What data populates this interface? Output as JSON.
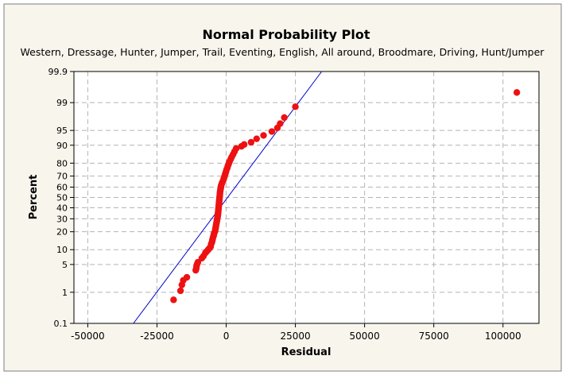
{
  "chart_data": {
    "type": "scatter",
    "title": "Normal Probability Plot",
    "subtitle": "Western, Dressage, Hunter, Jumper, Trail, Eventing, English, All around, Broodmare, Driving, Hunt/Jumper",
    "xlabel": "Residual",
    "ylabel": "Percent",
    "xlim": [
      -55000,
      113000
    ],
    "y_scale": "normal-probability",
    "ylim_percent": [
      0.1,
      99.9
    ],
    "x_ticks": [
      -50000,
      -25000,
      0,
      25000,
      50000,
      75000,
      100000
    ],
    "x_tick_labels": [
      "-50000",
      "-25000",
      "0",
      "25000",
      "50000",
      "75000",
      "100000"
    ],
    "y_ticks": [
      0.1,
      1,
      5,
      10,
      20,
      30,
      40,
      50,
      60,
      70,
      80,
      90,
      95,
      99,
      99.9
    ],
    "y_tick_labels": [
      "0.1",
      "1",
      "5",
      "10",
      "20",
      "30",
      "40",
      "50",
      "60",
      "70",
      "80",
      "90",
      "95",
      "99",
      "99.9"
    ],
    "grid": true,
    "colors": {
      "points": "#ee1111",
      "fit_line": "#0000cc",
      "frame_bg": "#f8f5ec",
      "grid": "#b4b4b4"
    },
    "fit_line": {
      "x": [
        -33500,
        34500
      ],
      "y_percent": [
        0.1,
        99.9
      ]
    },
    "series": [
      {
        "x": [
          -19000,
          -16500,
          -16000,
          -15500,
          -14200,
          -11000,
          -10800,
          -10700,
          -10500,
          -10200,
          -8800,
          -8200,
          -7500,
          -7000,
          -6500,
          -6000,
          -5600,
          -5400,
          -5200,
          -5000,
          -4900,
          -4700,
          -4500,
          -4400,
          -4200,
          -4000,
          -3900,
          -3800,
          -3700,
          -3600,
          -3500,
          -3400,
          -3300,
          -3200,
          -3100,
          -3000,
          -2950,
          -2900,
          -2850,
          -2800,
          -2750,
          -2700,
          -2650,
          -2600,
          -2550,
          -2500,
          -2450,
          -2400,
          -2350,
          -2300,
          -2250,
          -2200,
          -2100,
          -2000,
          -1900,
          -1800,
          -1600,
          -1400,
          -1100,
          -900,
          -700,
          -500,
          -300,
          -100,
          100,
          400,
          600,
          900,
          1200,
          1600,
          2000,
          2500,
          3000,
          3600,
          5500,
          6500,
          9000,
          11000,
          13500,
          16500,
          18500,
          19500,
          21000,
          25000,
          105000
        ],
        "y_percent": [
          0.6,
          1.1,
          1.6,
          2.1,
          2.5,
          3.7,
          4.1,
          4.6,
          5.1,
          5.6,
          6.8,
          7.5,
          8.7,
          9.3,
          10.0,
          10.7,
          11.4,
          12.7,
          13.4,
          14.5,
          15.3,
          16.6,
          17.5,
          18.7,
          19.5,
          20.6,
          21.8,
          22.9,
          24.1,
          25.4,
          26.6,
          27.8,
          29.1,
          30.5,
          31.9,
          33.2,
          34.5,
          35.8,
          37.1,
          38.5,
          39.8,
          41.2,
          42.6,
          44.0,
          45.4,
          46.8,
          48.2,
          49.6,
          51.0,
          52.5,
          54.0,
          55.5,
          57.0,
          58.5,
          60.0,
          61.5,
          63.0,
          64.5,
          66.0,
          67.5,
          69.0,
          70.5,
          72.0,
          73.5,
          75.0,
          76.5,
          78.0,
          79.5,
          81.0,
          82.5,
          84.0,
          85.5,
          87.0,
          88.5,
          89.5,
          90.3,
          91.2,
          92.5,
          93.6,
          94.7,
          95.6,
          96.5,
          97.5,
          98.7,
          99.5
        ]
      }
    ]
  }
}
